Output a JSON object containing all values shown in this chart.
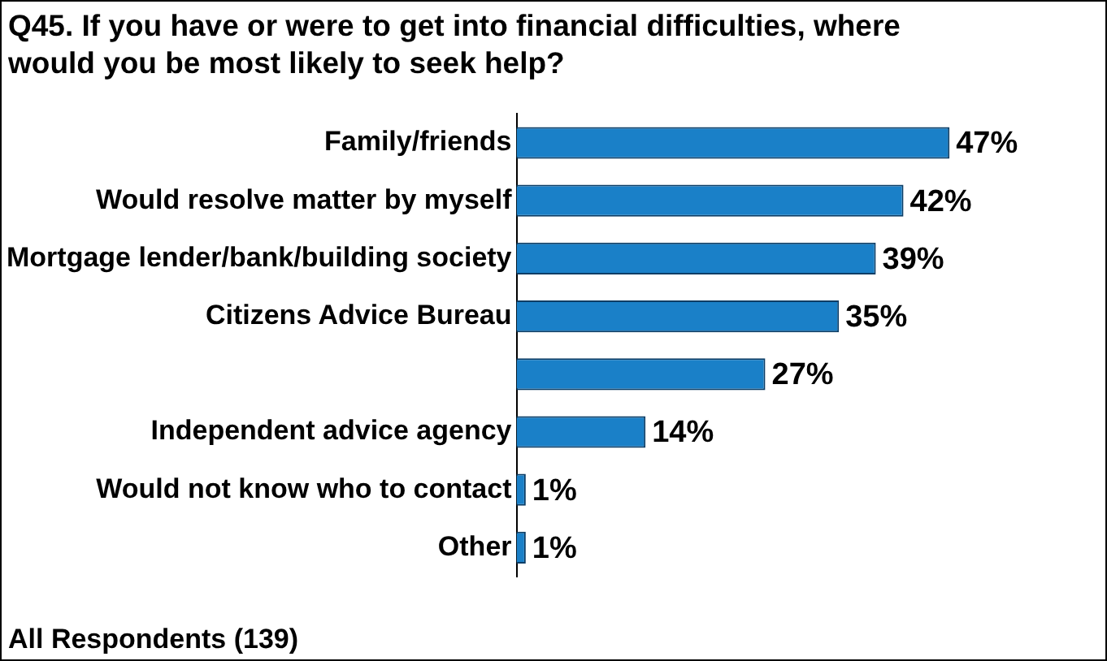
{
  "chart_data": {
    "type": "bar",
    "orientation": "horizontal",
    "title": "Q45. If you have or were to get into financial difficulties, where would you be most likely to seek help?",
    "categories": [
      "Family/friends",
      "Would resolve matter by myself",
      "Mortgage lender/bank/building society",
      "Citizens Advice Bureau",
      null,
      "Independent advice agency",
      "Would not know who to contact",
      "Other"
    ],
    "values": [
      47,
      42,
      39,
      35,
      27,
      14,
      1,
      1
    ],
    "value_labels": [
      "47%",
      "42%",
      "39%",
      "35%",
      "27%",
      "14%",
      "1%",
      "1%"
    ],
    "color": "#1a80c8",
    "annotations": [
      "All Respondents (139)"
    ],
    "legend": false
  }
}
